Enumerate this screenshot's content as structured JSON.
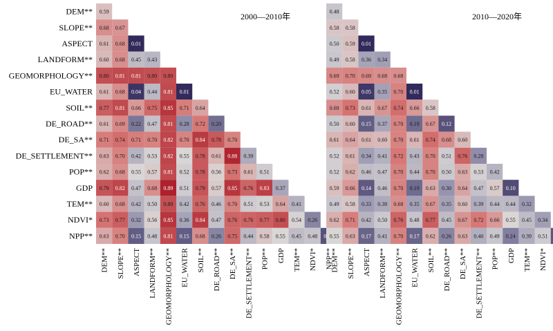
{
  "chart_data": [
    {
      "type": "heatmap",
      "title": "2000—2010年",
      "variables": [
        "DEM**",
        "SLOPE**",
        "ASPECT",
        "LANDFORM**",
        "GEOMORPHOLOGY**",
        "EU_WATER",
        "SOIL**",
        "DE_ROAD**",
        "DE_SA**",
        "DE_SETTLEMENT**",
        "POP**",
        "GDP",
        "TEM**",
        "NDVI*",
        "NPP**"
      ],
      "matrix": [
        [
          "0.59"
        ],
        [
          "0.68",
          "0.67"
        ],
        [
          "0.61",
          "0.68",
          "0.01"
        ],
        [
          "0.60",
          "0.68",
          "0.45",
          "0.43"
        ],
        [
          "0.80",
          "0.81",
          "0.81",
          "0.80",
          "0.80"
        ],
        [
          "0.61",
          "0.68",
          "0.04",
          "0.44",
          "0.81",
          "0.01"
        ],
        [
          "0.77",
          "0.81",
          "0.66",
          "0.75",
          "0.85",
          "0.71",
          "0.64"
        ],
        [
          "0.61",
          "0.69",
          "0.22",
          "0.47",
          "0.81",
          "0.28",
          "0.72",
          "0.20"
        ],
        [
          "0.71",
          "0.74",
          "0.71",
          "0.70",
          "0.82",
          "0.70",
          "0.84",
          "0.78",
          "0.70"
        ],
        [
          "0.63",
          "0.70",
          "0.42",
          "0.53",
          "0.82",
          "0.55",
          "0.78",
          "0.61",
          "0.88",
          "0.39"
        ],
        [
          "0.62",
          "0.68",
          "0.55",
          "0.57",
          "0.81",
          "0.52",
          "0.78",
          "0.56",
          "0.73",
          "0.61",
          "0.51"
        ],
        [
          "0.79",
          "0.82",
          "0.47",
          "0.68",
          "0.89",
          "0.51",
          "0.79",
          "0.57",
          "0.85",
          "0.76",
          "0.83",
          "0.37"
        ],
        [
          "0.60",
          "0.68",
          "0.42",
          "0.50",
          "0.80",
          "0.42",
          "0.76",
          "0.46",
          "0.70",
          "0.51",
          "0.53",
          "0.64",
          "0.41"
        ],
        [
          "0.73",
          "0.77",
          "0.32",
          "0.56",
          "0.85",
          "0.36",
          "0.84",
          "0.47",
          "0.76",
          "0.76",
          "0.77",
          "0.80",
          "0.54",
          "0.26"
        ],
        [
          "0.63",
          "0.70",
          "0.15",
          "0.48",
          "0.81",
          "0.15",
          "0.68",
          "0.26",
          "0.75",
          "0.44",
          "0.58",
          "0.55",
          "0.45",
          "0.48",
          "0.12"
        ]
      ]
    },
    {
      "type": "heatmap",
      "title": "2010—2020年",
      "variables": [
        "DEM**",
        "SLOPE**",
        "ASPECT",
        "LANDFORM**",
        "GEOMORPHOLOGY**",
        "EU_WATER",
        "SOIL**",
        "DE_ROAD**",
        "DE_SA**",
        "DE_SETTLEMENT**",
        "POP**",
        "GDP",
        "TEM**",
        "NDVI*",
        "NPP**"
      ],
      "matrix": [
        [
          "0.48"
        ],
        [
          "0.58",
          "0.58"
        ],
        [
          "0.50",
          "0.59",
          "0.01"
        ],
        [
          "0.49",
          "0.58",
          "0.36",
          "0.34"
        ],
        [
          "0.69",
          "0.70",
          "0.69",
          "0.68",
          "0.68"
        ],
        [
          "0.52",
          "0.60",
          "0.05",
          "0.35",
          "0.70",
          "0.01"
        ],
        [
          "0.68",
          "0.73",
          "0.61",
          "0.67",
          "0.74",
          "0.66",
          "0.58"
        ],
        [
          "0.50",
          "0.60",
          "0.15",
          "0.37",
          "0.70",
          "0.19",
          "0.67",
          "0.12"
        ],
        [
          "0.61",
          "0.64",
          "0.61",
          "0.60",
          "0.70",
          "0.61",
          "0.74",
          "0.68",
          "0.60"
        ],
        [
          "0.52",
          "0.61",
          "0.34",
          "0.41",
          "0.72",
          "0.43",
          "0.70",
          "0.51",
          "0.76",
          "0.28"
        ],
        [
          "0.52",
          "0.62",
          "0.46",
          "0.47",
          "0.70",
          "0.44",
          "0.70",
          "0.50",
          "0.63",
          "0.53",
          "0.42"
        ],
        [
          "0.59",
          "0.66",
          "0.14",
          "0.46",
          "0.70",
          "0.19",
          "0.63",
          "0.30",
          "0.64",
          "0.47",
          "0.57",
          "0.10"
        ],
        [
          "0.49",
          "0.58",
          "0.33",
          "0.38",
          "0.68",
          "0.35",
          "0.67",
          "0.35",
          "0.60",
          "0.39",
          "0.44",
          "0.44",
          "0.32"
        ],
        [
          "0.62",
          "0.71",
          "0.42",
          "0.50",
          "0.76",
          "0.48",
          "0.77",
          "0.45",
          "0.67",
          "0.72",
          "0.66",
          "0.55",
          "0.45",
          "0.34"
        ],
        [
          "0.55",
          "0.63",
          "0.17",
          "0.41",
          "0.70",
          "0.17",
          "0.62",
          "0.26",
          "0.63",
          "0.40",
          "0.49",
          "0.24",
          "0.39",
          "0.51",
          "0.13"
        ]
      ]
    }
  ]
}
